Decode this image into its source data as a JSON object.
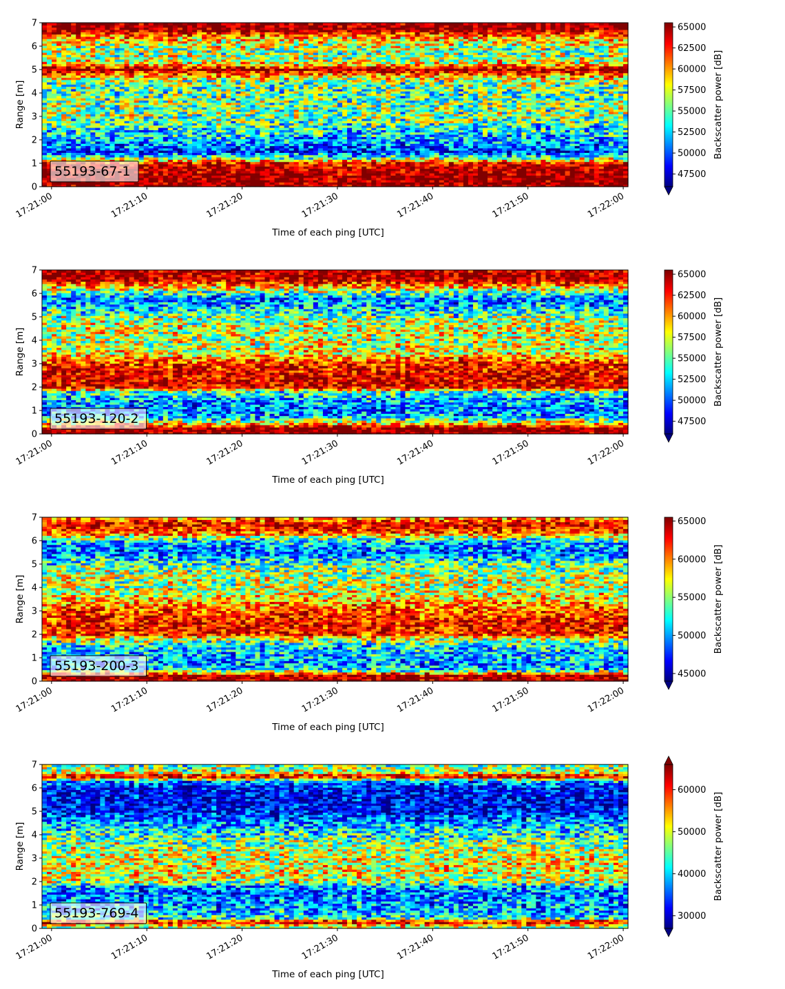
{
  "chart_data": [
    {
      "type": "heatmap",
      "panel_label": "55193-67-1",
      "xlabel": "Time of each ping [UTC]",
      "ylabel": "Range [m]",
      "xticks": [
        "17:21:00",
        "17:21:10",
        "17:21:20",
        "17:21:30",
        "17:21:40",
        "17:21:50",
        "17:22:00"
      ],
      "xlim": [
        "17:20:59",
        "17:22:00.5"
      ],
      "ylim": [
        0,
        7
      ],
      "yticks": [
        0,
        1,
        2,
        3,
        4,
        5,
        6,
        7
      ],
      "colormap": "jet",
      "colorbar_label": "Backscatter power [dB]",
      "colorbar_ticks": [
        47500,
        50000,
        52500,
        55000,
        57500,
        60000,
        62500,
        65000
      ],
      "clim": [
        46000,
        65500
      ],
      "colorbar_extend": "min",
      "range_profile": [
        {
          "range_m": 0.25,
          "level": 0.98
        },
        {
          "range_m": 0.5,
          "level": 0.97
        },
        {
          "range_m": 0.75,
          "level": 0.95
        },
        {
          "range_m": 1.0,
          "level": 0.9
        },
        {
          "range_m": 1.25,
          "level": 0.45
        },
        {
          "range_m": 1.5,
          "level": 0.15
        },
        {
          "range_m": 1.75,
          "level": 0.25
        },
        {
          "range_m": 2.0,
          "level": 0.3
        },
        {
          "range_m": 2.5,
          "level": 0.4
        },
        {
          "range_m": 3.0,
          "level": 0.5
        },
        {
          "range_m": 3.5,
          "level": 0.5
        },
        {
          "range_m": 4.0,
          "level": 0.45
        },
        {
          "range_m": 4.5,
          "level": 0.5
        },
        {
          "range_m": 4.8,
          "level": 0.75
        },
        {
          "range_m": 5.0,
          "level": 0.97
        },
        {
          "range_m": 5.3,
          "level": 0.6
        },
        {
          "range_m": 5.7,
          "level": 0.5
        },
        {
          "range_m": 6.0,
          "level": 0.55
        },
        {
          "range_m": 6.4,
          "level": 0.7
        },
        {
          "range_m": 6.7,
          "level": 0.97
        },
        {
          "range_m": 7.0,
          "level": 0.98
        }
      ]
    },
    {
      "type": "heatmap",
      "panel_label": "55193-120-2",
      "xlabel": "Time of each ping [UTC]",
      "ylabel": "Range [m]",
      "xticks": [
        "17:21:00",
        "17:21:10",
        "17:21:20",
        "17:21:30",
        "17:21:40",
        "17:21:50",
        "17:22:00"
      ],
      "xlim": [
        "17:20:59",
        "17:22:00.5"
      ],
      "ylim": [
        0,
        7
      ],
      "yticks": [
        0,
        1,
        2,
        3,
        4,
        5,
        6,
        7
      ],
      "colormap": "jet",
      "colorbar_label": "Backscatter power [dB]",
      "colorbar_ticks": [
        47500,
        50000,
        52500,
        55000,
        57500,
        60000,
        62500,
        65000
      ],
      "clim": [
        46000,
        65500
      ],
      "colorbar_extend": "min",
      "range_profile": [
        {
          "range_m": 0.25,
          "level": 0.98
        },
        {
          "range_m": 0.5,
          "level": 0.6
        },
        {
          "range_m": 0.75,
          "level": 0.3
        },
        {
          "range_m": 1.0,
          "level": 0.25
        },
        {
          "range_m": 1.5,
          "level": 0.3
        },
        {
          "range_m": 1.8,
          "level": 0.45
        },
        {
          "range_m": 2.0,
          "level": 0.9
        },
        {
          "range_m": 2.5,
          "level": 0.9
        },
        {
          "range_m": 3.0,
          "level": 0.85
        },
        {
          "range_m": 3.5,
          "level": 0.6
        },
        {
          "range_m": 4.0,
          "level": 0.55
        },
        {
          "range_m": 4.5,
          "level": 0.6
        },
        {
          "range_m": 5.0,
          "level": 0.5
        },
        {
          "range_m": 5.5,
          "level": 0.3
        },
        {
          "range_m": 5.8,
          "level": 0.25
        },
        {
          "range_m": 6.2,
          "level": 0.6
        },
        {
          "range_m": 6.6,
          "level": 0.95
        },
        {
          "range_m": 7.0,
          "level": 0.95
        }
      ]
    },
    {
      "type": "heatmap",
      "panel_label": "55193-200-3",
      "xlabel": "Time of each ping [UTC]",
      "ylabel": "Range [m]",
      "xticks": [
        "17:21:00",
        "17:21:10",
        "17:21:20",
        "17:21:30",
        "17:21:40",
        "17:21:50",
        "17:22:00"
      ],
      "xlim": [
        "17:20:59",
        "17:22:00.5"
      ],
      "ylim": [
        0,
        7
      ],
      "yticks": [
        0,
        1,
        2,
        3,
        4,
        5,
        6,
        7
      ],
      "colormap": "jet",
      "colorbar_label": "Backscatter power [dB]",
      "colorbar_ticks": [
        45000,
        50000,
        55000,
        60000,
        65000
      ],
      "clim": [
        44000,
        65500
      ],
      "colorbar_extend": "min",
      "range_profile": [
        {
          "range_m": 0.25,
          "level": 0.95
        },
        {
          "range_m": 0.5,
          "level": 0.35
        },
        {
          "range_m": 0.75,
          "level": 0.28
        },
        {
          "range_m": 1.0,
          "level": 0.3
        },
        {
          "range_m": 1.5,
          "level": 0.35
        },
        {
          "range_m": 1.8,
          "level": 0.55
        },
        {
          "range_m": 2.0,
          "level": 0.85
        },
        {
          "range_m": 2.5,
          "level": 0.88
        },
        {
          "range_m": 3.0,
          "level": 0.8
        },
        {
          "range_m": 3.5,
          "level": 0.65
        },
        {
          "range_m": 4.0,
          "level": 0.55
        },
        {
          "range_m": 4.5,
          "level": 0.55
        },
        {
          "range_m": 5.0,
          "level": 0.45
        },
        {
          "range_m": 5.5,
          "level": 0.22
        },
        {
          "range_m": 6.0,
          "level": 0.35
        },
        {
          "range_m": 6.3,
          "level": 0.75
        },
        {
          "range_m": 6.7,
          "level": 0.92
        },
        {
          "range_m": 7.0,
          "level": 0.7
        }
      ]
    },
    {
      "type": "heatmap",
      "panel_label": "55193-769-4",
      "xlabel": "Time of each ping [UTC]",
      "ylabel": "Range [m]",
      "xticks": [
        "17:21:00",
        "17:21:10",
        "17:21:20",
        "17:21:30",
        "17:21:40",
        "17:21:50",
        "17:22:00"
      ],
      "xlim": [
        "17:20:59",
        "17:22:00.5"
      ],
      "ylim": [
        0,
        7
      ],
      "yticks": [
        0,
        1,
        2,
        3,
        4,
        5,
        6,
        7
      ],
      "colormap": "jet",
      "colorbar_label": "Backscatter power [dB]",
      "colorbar_ticks": [
        30000,
        40000,
        50000,
        60000
      ],
      "clim": [
        27000,
        66000
      ],
      "colorbar_extend": "both",
      "range_profile": [
        {
          "range_m": 0.1,
          "level": 0.55
        },
        {
          "range_m": 0.2,
          "level": 0.8
        },
        {
          "range_m": 0.3,
          "level": 0.97
        },
        {
          "range_m": 0.45,
          "level": 0.4
        },
        {
          "range_m": 0.7,
          "level": 0.32
        },
        {
          "range_m": 1.0,
          "level": 0.28
        },
        {
          "range_m": 1.5,
          "level": 0.25
        },
        {
          "range_m": 1.8,
          "level": 0.3
        },
        {
          "range_m": 2.0,
          "level": 0.55
        },
        {
          "range_m": 2.5,
          "level": 0.62
        },
        {
          "range_m": 3.0,
          "level": 0.6
        },
        {
          "range_m": 3.5,
          "level": 0.55
        },
        {
          "range_m": 4.0,
          "level": 0.42
        },
        {
          "range_m": 4.5,
          "level": 0.3
        },
        {
          "range_m": 5.0,
          "level": 0.14
        },
        {
          "range_m": 5.5,
          "level": 0.12
        },
        {
          "range_m": 6.0,
          "level": 0.15
        },
        {
          "range_m": 6.3,
          "level": 0.3
        },
        {
          "range_m": 6.5,
          "level": 0.97
        },
        {
          "range_m": 6.7,
          "level": 0.55
        },
        {
          "range_m": 7.0,
          "level": 0.5
        }
      ]
    }
  ]
}
